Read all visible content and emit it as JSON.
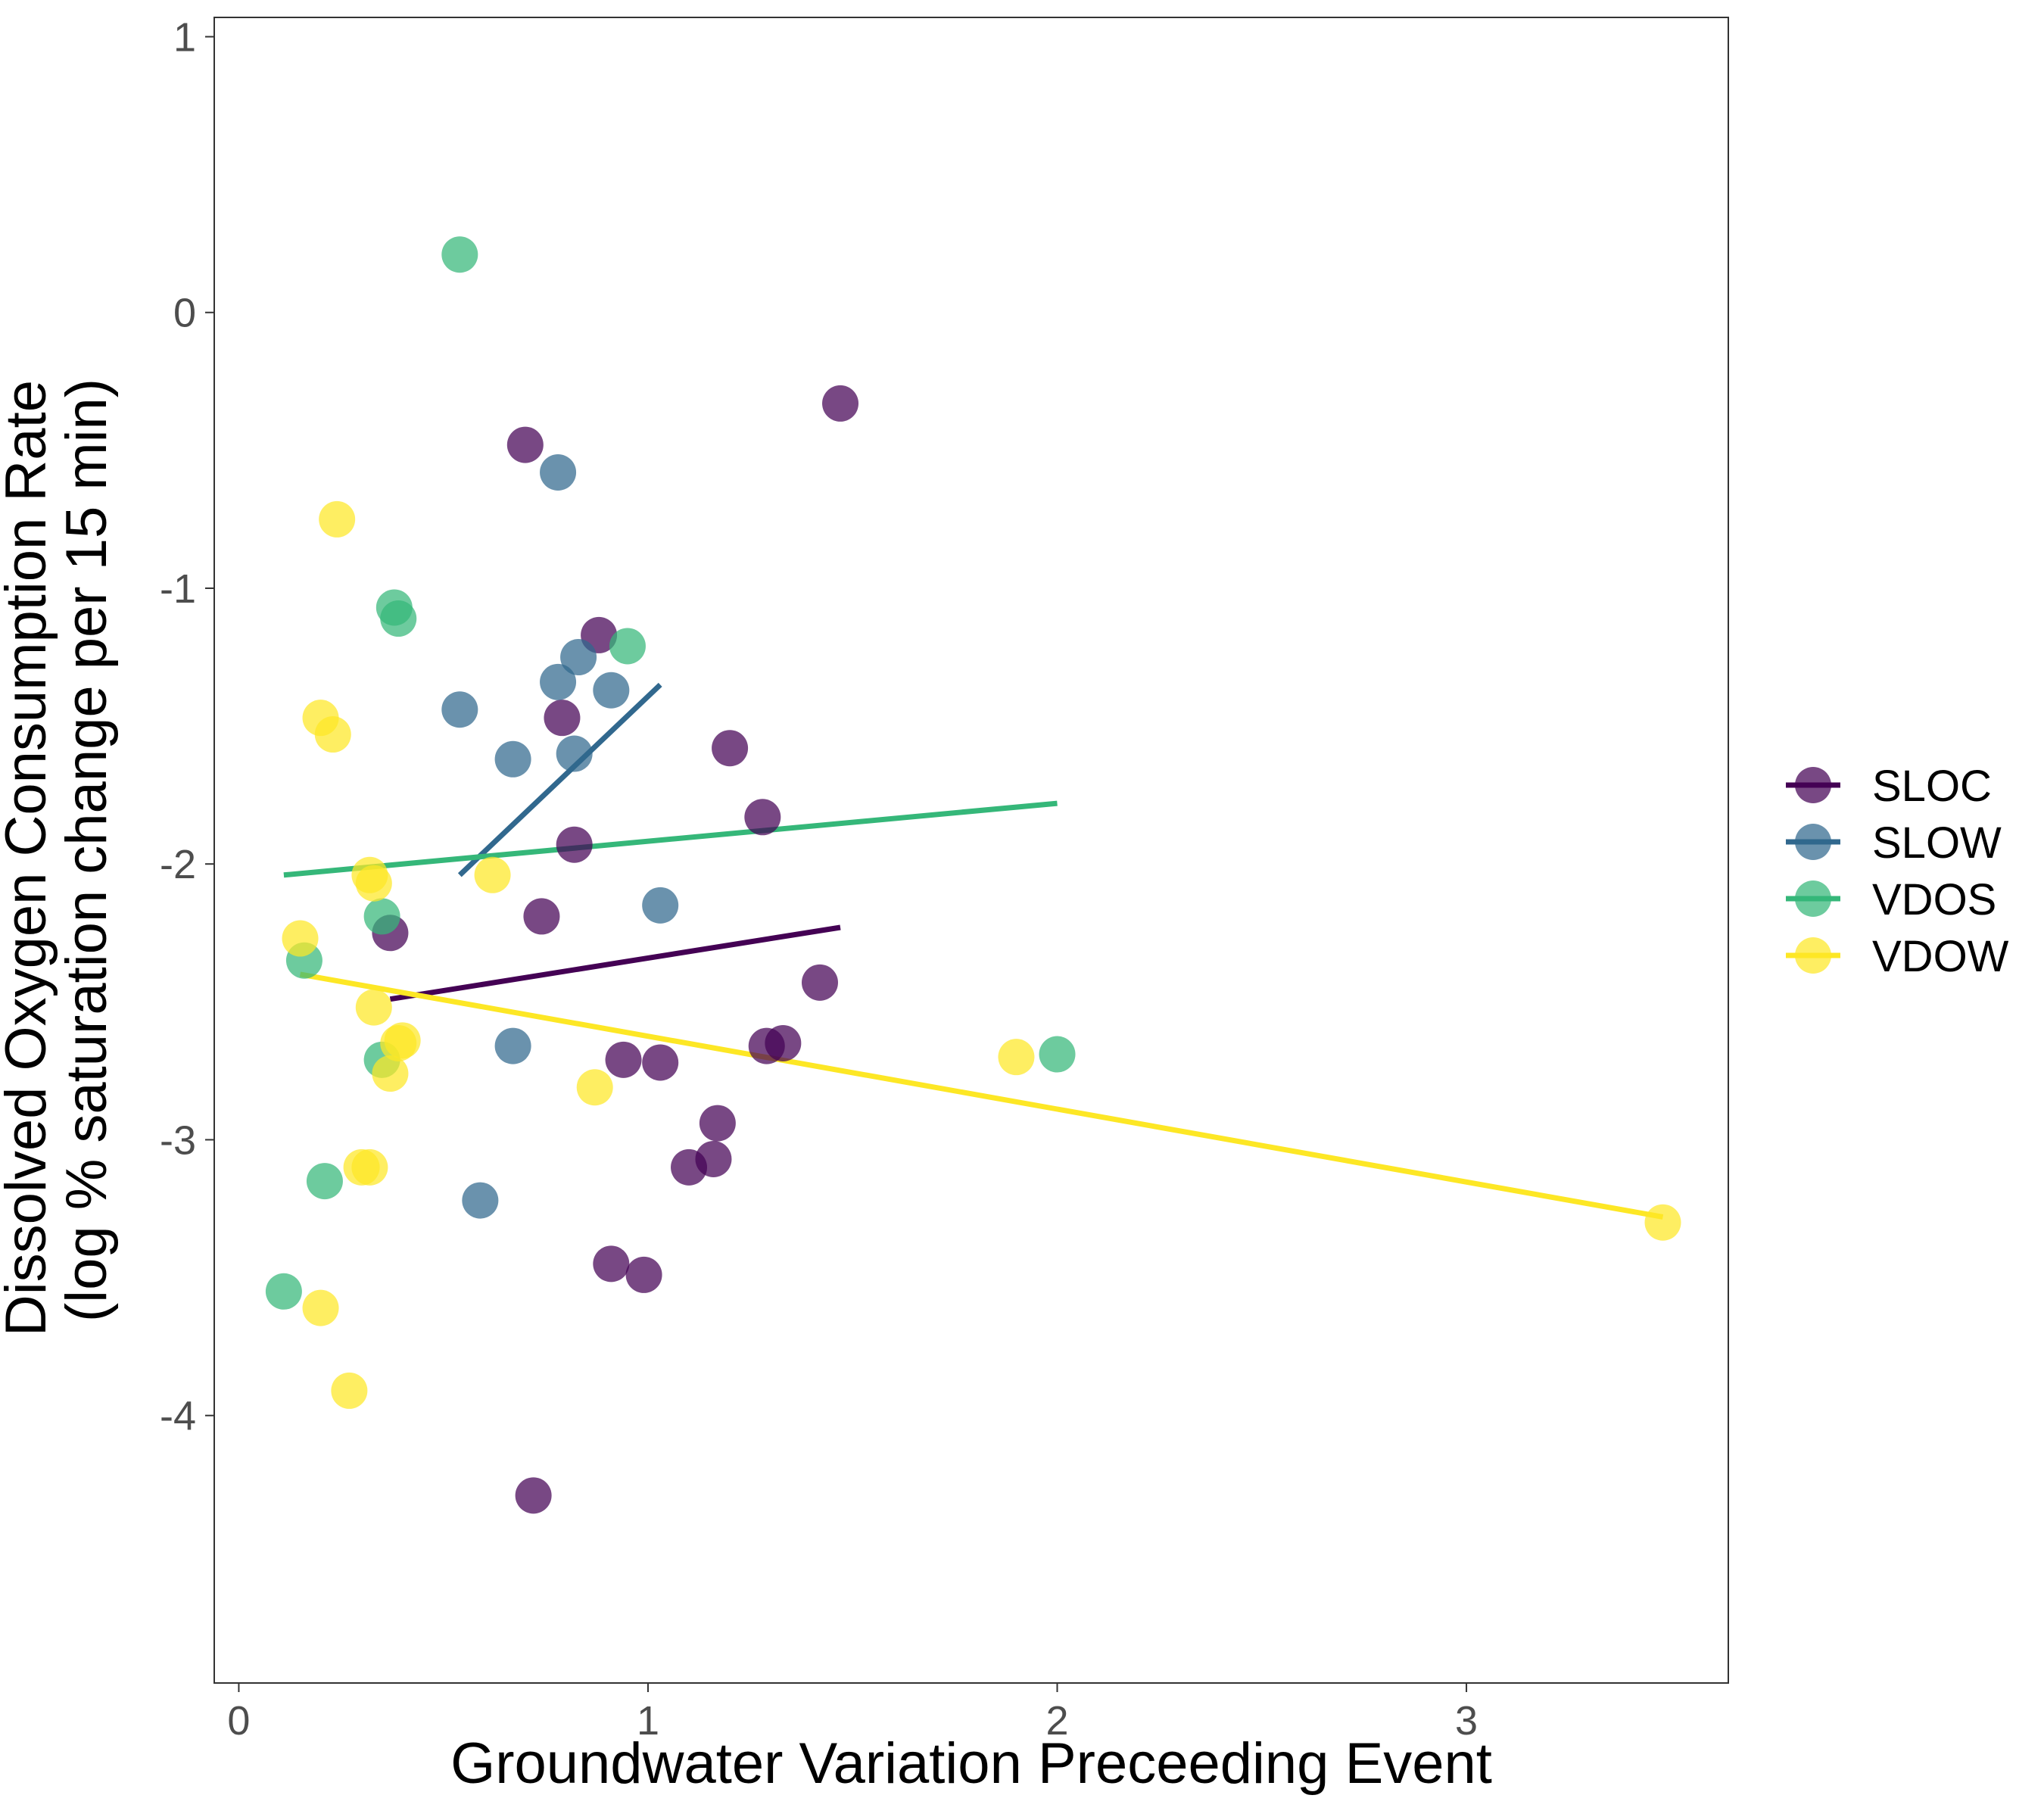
{
  "chart_data": {
    "type": "scatter",
    "title": "",
    "xlabel": "Groundwater Variation Preceeding Event",
    "ylabel_lines": [
      "Dissolved Oxygen Consumption Rate",
      "(log % saturation change per 15 min)"
    ],
    "xlim": [
      -0.06,
      3.64
    ],
    "ylim": [
      -4.97,
      1.07
    ],
    "x_ticks": [
      0,
      1,
      2,
      3
    ],
    "x_tick_labels": [
      "0",
      "1",
      "2",
      "3"
    ],
    "y_ticks": [
      1,
      0,
      -1,
      -2,
      -3,
      -4
    ],
    "y_tick_labels": [
      "1",
      "0",
      "-1",
      "-2",
      "-3",
      "-4"
    ],
    "grid": false,
    "legend_position": "right",
    "series": [
      {
        "name": "SLOC",
        "color": "#440154",
        "points": [
          [
            0.7,
            -0.48
          ],
          [
            1.47,
            -0.33
          ],
          [
            0.88,
            -1.17
          ],
          [
            0.79,
            -1.47
          ],
          [
            1.2,
            -1.58
          ],
          [
            1.28,
            -1.83
          ],
          [
            0.82,
            -1.93
          ],
          [
            0.74,
            -2.19
          ],
          [
            0.37,
            -2.25
          ],
          [
            1.42,
            -2.43
          ],
          [
            1.33,
            -2.65
          ],
          [
            1.29,
            -2.66
          ],
          [
            0.94,
            -2.71
          ],
          [
            1.03,
            -2.72
          ],
          [
            1.17,
            -2.94
          ],
          [
            1.16,
            -3.07
          ],
          [
            1.1,
            -3.1
          ],
          [
            0.91,
            -3.45
          ],
          [
            0.99,
            -3.49
          ],
          [
            0.72,
            -4.29
          ]
        ],
        "fit": [
          [
            0.37,
            -2.49
          ],
          [
            1.47,
            -2.23
          ]
        ]
      },
      {
        "name": "SLOW",
        "color": "#31688e",
        "points": [
          [
            0.78,
            -0.58
          ],
          [
            0.83,
            -1.25
          ],
          [
            0.78,
            -1.34
          ],
          [
            0.91,
            -1.37
          ],
          [
            0.54,
            -1.44
          ],
          [
            0.82,
            -1.6
          ],
          [
            0.67,
            -1.62
          ],
          [
            1.03,
            -2.15
          ],
          [
            0.67,
            -2.66
          ],
          [
            0.59,
            -3.22
          ]
        ],
        "fit": [
          [
            0.54,
            -2.04
          ],
          [
            1.03,
            -1.35
          ]
        ]
      },
      {
        "name": "VDOS",
        "color": "#35b779",
        "points": [
          [
            0.54,
            0.21
          ],
          [
            0.38,
            -1.07
          ],
          [
            0.39,
            -1.11
          ],
          [
            0.95,
            -1.21
          ],
          [
            0.35,
            -2.19
          ],
          [
            0.16,
            -2.35
          ],
          [
            0.35,
            -2.71
          ],
          [
            2.0,
            -2.69
          ],
          [
            0.21,
            -3.15
          ],
          [
            0.11,
            -3.55
          ]
        ],
        "fit": [
          [
            0.11,
            -2.04
          ],
          [
            2.0,
            -1.78
          ]
        ]
      },
      {
        "name": "VDOW",
        "color": "#fde725",
        "points": [
          [
            0.24,
            -0.75
          ],
          [
            0.2,
            -1.47
          ],
          [
            0.23,
            -1.53
          ],
          [
            0.32,
            -2.04
          ],
          [
            0.62,
            -2.04
          ],
          [
            0.33,
            -2.07
          ],
          [
            0.15,
            -2.27
          ],
          [
            0.33,
            -2.52
          ],
          [
            0.4,
            -2.64
          ],
          [
            0.39,
            -2.65
          ],
          [
            0.37,
            -2.76
          ],
          [
            0.87,
            -2.81
          ],
          [
            1.9,
            -2.7
          ],
          [
            0.3,
            -3.1
          ],
          [
            0.32,
            -3.1
          ],
          [
            3.48,
            -3.3
          ],
          [
            0.2,
            -3.61
          ],
          [
            0.27,
            -3.91
          ]
        ],
        "fit": [
          [
            0.15,
            -2.4
          ],
          [
            3.48,
            -3.28
          ]
        ]
      }
    ]
  }
}
